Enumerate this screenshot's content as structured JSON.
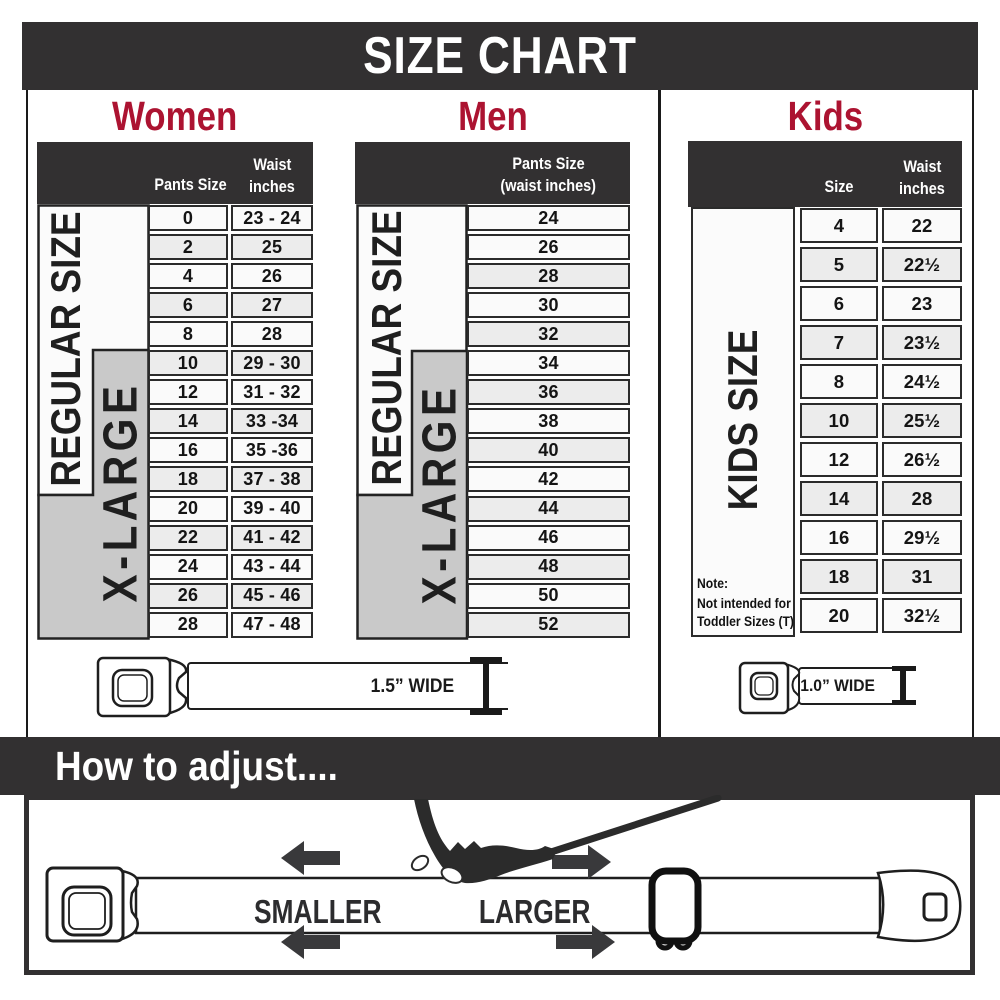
{
  "title": "SIZE CHART",
  "colors": {
    "accent": "#AC1331",
    "dark": "#323031",
    "band_gray": "#c9c9c9",
    "band_white": "#fbfbfb",
    "row_light": "#fafafa",
    "row_shaded": "#ececec"
  },
  "women": {
    "heading": "Women",
    "band_regular": "REGULAR SIZE",
    "band_xlarge": "X-LARGE",
    "col_pants": "Pants Size",
    "col_waist_l1": "Waist",
    "col_waist_l2": "inches",
    "rows": [
      {
        "size": "0",
        "waist": "23 - 24"
      },
      {
        "size": "2",
        "waist": "25"
      },
      {
        "size": "4",
        "waist": "26"
      },
      {
        "size": "6",
        "waist": "27"
      },
      {
        "size": "8",
        "waist": "28"
      },
      {
        "size": "10",
        "waist": "29 - 30"
      },
      {
        "size": "12",
        "waist": "31 - 32"
      },
      {
        "size": "14",
        "waist": "33 -34"
      },
      {
        "size": "16",
        "waist": "35 -36"
      },
      {
        "size": "18",
        "waist": "37 - 38"
      },
      {
        "size": "20",
        "waist": "39 - 40"
      },
      {
        "size": "22",
        "waist": "41 - 42"
      },
      {
        "size": "24",
        "waist": "43 - 44"
      },
      {
        "size": "26",
        "waist": "45 - 46"
      },
      {
        "size": "28",
        "waist": "47 - 48"
      }
    ]
  },
  "men": {
    "heading": "Men",
    "band_regular": "REGULAR SIZE",
    "band_xlarge": "X-LARGE",
    "col_l1": "Pants Size",
    "col_l2": "(waist inches)",
    "rows": [
      "24",
      "26",
      "28",
      "30",
      "32",
      "34",
      "36",
      "38",
      "40",
      "42",
      "44",
      "46",
      "48",
      "50",
      "52"
    ]
  },
  "kids": {
    "heading": "Kids",
    "band_label": "KIDS SIZE",
    "col_size": "Size",
    "col_waist_l1": "Waist",
    "col_waist_l2": "inches",
    "note_l1": "Note:",
    "note_l2": "Not intended for",
    "note_l3": "Toddler Sizes (T)",
    "rows": [
      {
        "size": "4",
        "waist": "22"
      },
      {
        "size": "5",
        "waist": "22½"
      },
      {
        "size": "6",
        "waist": "23"
      },
      {
        "size": "7",
        "waist": "23½"
      },
      {
        "size": "8",
        "waist": "24½"
      },
      {
        "size": "10",
        "waist": "25½"
      },
      {
        "size": "12",
        "waist": "26½"
      },
      {
        "size": "14",
        "waist": "28"
      },
      {
        "size": "16",
        "waist": "29½"
      },
      {
        "size": "18",
        "waist": "31"
      },
      {
        "size": "20",
        "waist": "32½"
      }
    ]
  },
  "belts": {
    "adult_width_label": "1.5” WIDE",
    "kids_width_label": "1.0” WIDE"
  },
  "adjust": {
    "heading": "How to adjust....",
    "smaller": "SMALLER",
    "larger": "LARGER"
  }
}
